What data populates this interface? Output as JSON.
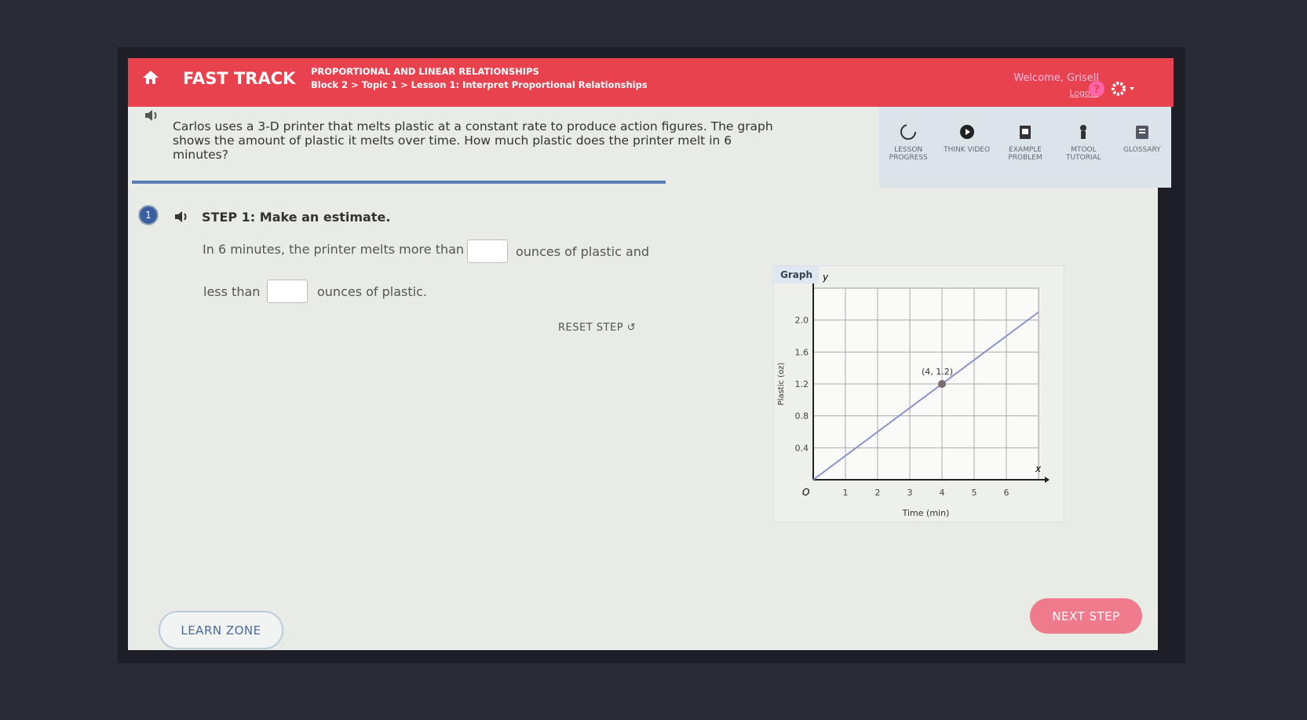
{
  "header": {
    "brand": "FAST TRACK",
    "unit": "PROPORTIONAL AND LINEAR RELATIONSHIPS",
    "breadcrumb": "Block 2 > Topic 1 > Lesson 1: Interpret Proportional Relationships",
    "welcome": "Welcome, Grisell",
    "logout": "Logout"
  },
  "question": "Carlos uses a 3-D printer that melts plastic at a constant rate to produce action figures. The graph shows the amount of plastic it melts over time. How much plastic does the printer melt in 6 minutes?",
  "toolbar": [
    {
      "label": "LESSON PROGRESS"
    },
    {
      "label": "THINK VIDEO"
    },
    {
      "label": "EXAMPLE PROBLEM"
    },
    {
      "label": "MTOOL TUTORIAL"
    },
    {
      "label": "GLOSSARY"
    }
  ],
  "step": {
    "number": "1",
    "title": "STEP 1: Make an estimate.",
    "line1_before": "In 6 minutes, the printer melts more than",
    "line1_after": "ounces of plastic and",
    "line2_before": "less than",
    "line2_after": "ounces of plastic.",
    "reset": "RESET STEP"
  },
  "graph": {
    "title": "Graph",
    "x_label": "Time (min)",
    "y_label": "Plastic (oz)",
    "x_axis_letter": "x",
    "y_axis_letter": "y",
    "origin_label": "O",
    "xlim": [
      0,
      7
    ],
    "ylim": [
      0,
      2.4
    ],
    "xticks": [
      1,
      2,
      3,
      4,
      5,
      6
    ],
    "yticks": [
      0.4,
      0.8,
      1.2,
      1.6,
      {
        "value": 2,
        "label": "2.0"
      }
    ],
    "line": {
      "x": [
        0,
        7
      ],
      "y": [
        0,
        2.1
      ]
    },
    "point": {
      "x": 4,
      "y": 1.2,
      "label": "(4, 1.2)"
    }
  },
  "footer": {
    "learn_zone": "LEARN ZONE",
    "next_step": "NEXT STEP"
  }
}
